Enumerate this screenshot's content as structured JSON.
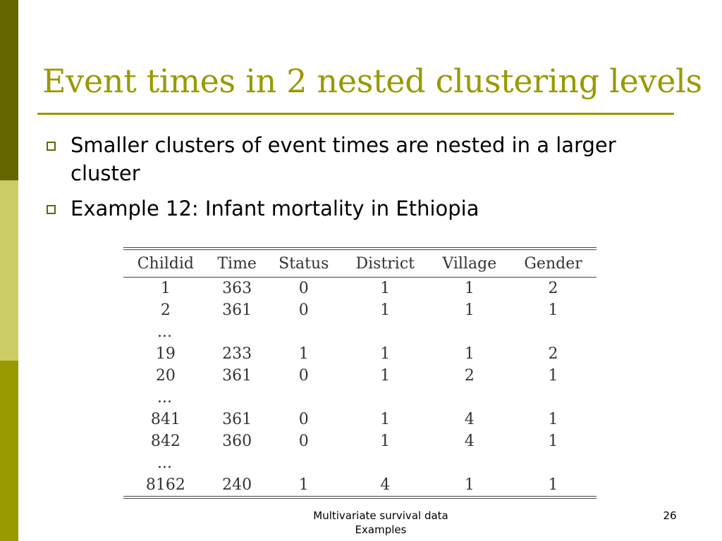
{
  "slide": {
    "title": "Event times in 2 nested clustering levels",
    "bullets": [
      {
        "text": "Smaller clusters of event times are nested in a larger cluster"
      },
      {
        "text": "Example 12: Infant mortality in Ethiopia"
      }
    ],
    "table": {
      "columns": [
        "Childid",
        "Time",
        "Status",
        "District",
        "Village",
        "Gender"
      ],
      "rows": [
        [
          "1",
          "363",
          "0",
          "1",
          "1",
          "2"
        ],
        [
          "2",
          "361",
          "0",
          "1",
          "1",
          "1"
        ],
        [
          "...",
          "",
          "",
          "",
          "",
          ""
        ],
        [
          "19",
          "233",
          "1",
          "1",
          "1",
          "2"
        ],
        [
          "20",
          "361",
          "0",
          "1",
          "2",
          "1"
        ],
        [
          "...",
          "",
          "",
          "",
          "",
          ""
        ],
        [
          "841",
          "361",
          "0",
          "1",
          "4",
          "1"
        ],
        [
          "842",
          "360",
          "0",
          "1",
          "4",
          "1"
        ],
        [
          "...",
          "",
          "",
          "",
          "",
          ""
        ],
        [
          "8162",
          "240",
          "1",
          "4",
          "1",
          "1"
        ]
      ]
    },
    "footer": {
      "line1": "Multivariate survival data",
      "line2": "Examples",
      "page_number": "26"
    },
    "colors": {
      "accent": "#999900",
      "stripe_dark": "#666600",
      "stripe_light": "#cccc66"
    }
  }
}
